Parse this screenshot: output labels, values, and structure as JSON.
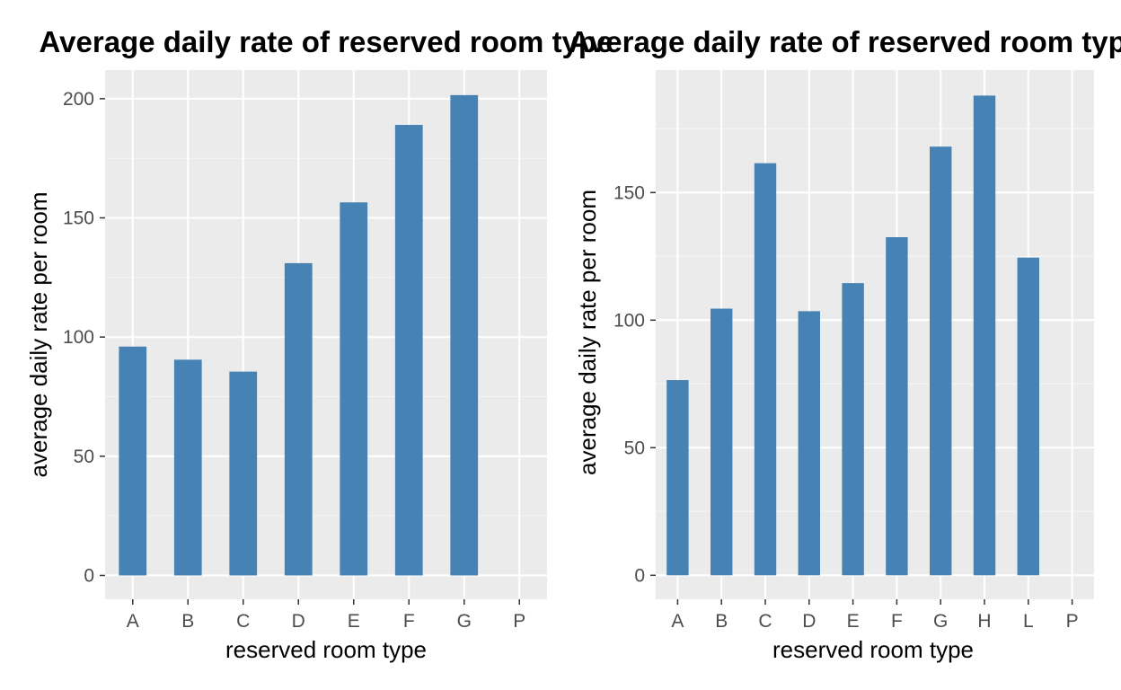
{
  "colors": {
    "panel_bg": "#ebebeb",
    "grid_major": "#ffffff",
    "grid_minor": "#f5f5f5",
    "bar": "#4682b4",
    "tick_text": "#4d4d4d",
    "tick_mark": "#333333"
  },
  "chart_data": [
    {
      "type": "bar",
      "title": "Average daily rate of reserved room type",
      "xlabel": "reserved room type",
      "ylabel": "average daily rate per room",
      "categories": [
        "A",
        "B",
        "C",
        "D",
        "E",
        "F",
        "G",
        "P"
      ],
      "values": [
        96,
        90.5,
        85.5,
        131,
        156.5,
        189,
        201.5,
        0
      ],
      "ylim": [
        -10,
        212
      ],
      "yticks": [
        0,
        50,
        100,
        150,
        200
      ],
      "ytick_labels": [
        "0",
        "50",
        "100",
        "150",
        "200"
      ],
      "grid": true,
      "legend": "none"
    },
    {
      "type": "bar",
      "title": "Average daily rate of reserved room type at",
      "xlabel": "reserved room type",
      "ylabel": "average daily rate per room",
      "categories": [
        "A",
        "B",
        "C",
        "D",
        "E",
        "F",
        "G",
        "H",
        "L",
        "P"
      ],
      "values": [
        76.5,
        104.5,
        161.5,
        103.5,
        114.5,
        132.5,
        168,
        188,
        124.5,
        0
      ],
      "ylim": [
        -9.4,
        198
      ],
      "yticks": [
        0,
        50,
        100,
        150
      ],
      "ytick_labels": [
        "0",
        "50",
        "100",
        "150"
      ],
      "grid": true,
      "legend": "none"
    }
  ]
}
